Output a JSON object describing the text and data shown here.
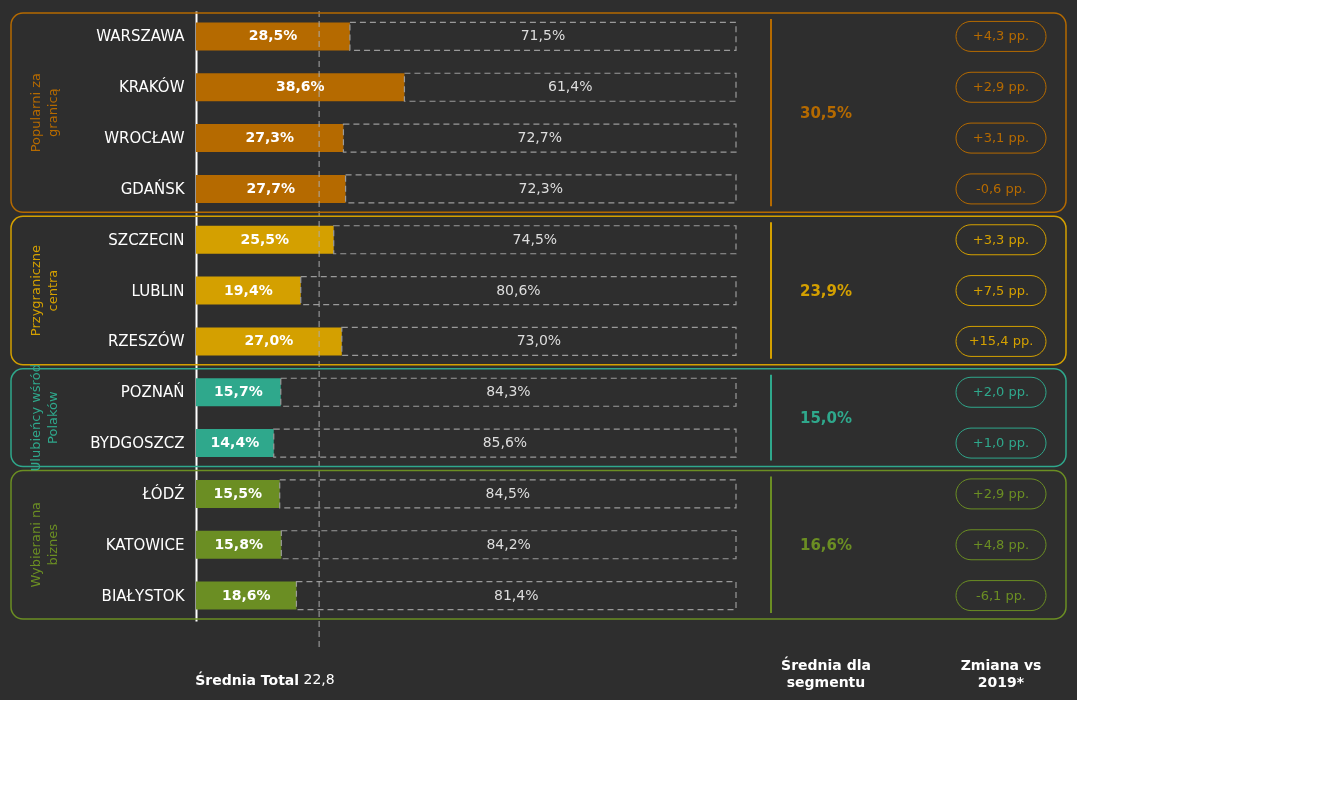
{
  "chart_data": {
    "type": "bar",
    "orientation": "horizontal",
    "stacked": true,
    "grid": false,
    "tick_labels": "y",
    "xlim": [
      0,
      100
    ],
    "categories": [
      "WARSZAWA",
      "KRAKÓW",
      "WROCŁAW",
      "GDAŃSK",
      "SZCZECIN",
      "LUBLIN",
      "RZESZÓW",
      "POZNAŃ",
      "BYDGOSZCZ",
      "ŁÓDŹ",
      "KATOWICE",
      "BIAŁYSTOK"
    ],
    "series": [
      {
        "colors": [
          "#b56a00",
          "#b56a00",
          "#b56a00",
          "#b56a00",
          "#d4a000",
          "#d4a000",
          "#d4a000",
          "#2fa88c",
          "#2fa88c",
          "#6b8e23",
          "#6b8e23",
          "#6b8e23"
        ],
        "values": [
          28.5,
          38.6,
          27.3,
          27.7,
          25.5,
          19.4,
          27.0,
          15.7,
          14.4,
          15.5,
          15.8,
          18.6
        ],
        "value_labels": [
          "28,5%",
          "38,6%",
          "27,3%",
          "27,7%",
          "25,5%",
          "19,4%",
          "27,0%",
          "15,7%",
          "14,4%",
          "15,5%",
          "15,8%",
          "18,6%"
        ]
      },
      {
        "color": "#9a9a9a",
        "line_style": "dashed",
        "values": [
          71.5,
          61.4,
          72.7,
          72.3,
          74.5,
          80.6,
          73.0,
          84.3,
          85.6,
          84.5,
          84.2,
          81.4
        ],
        "value_labels": [
          "71,5%",
          "61,4%",
          "72,7%",
          "72,3%",
          "74,5%",
          "80,6%",
          "73,0%",
          "84,3%",
          "85,6%",
          "84,5%",
          "84,2%",
          "81,4%"
        ]
      }
    ],
    "ref_lines": [
      {
        "axis": "x",
        "value": 22.8,
        "label": "22,8",
        "color": "#aaaaaa",
        "line_style": "dashed"
      }
    ],
    "annotations": [
      "Popularni za granicą",
      "Przygraniczne centra",
      "Ulubieńcy wśród Polaków",
      "Wybierani na biznes",
      "30,5%",
      "23,9%",
      "15,0%",
      "16,6%",
      "+4,3 pp.",
      "+2,9 pp.",
      "+3,1 pp.",
      "-0,6 pp.",
      "+3,3 pp.",
      "+7,5 pp.",
      "+15,4 pp.",
      "+2,0 pp.",
      "+1,0 pp.",
      "+2,9 pp.",
      "+4,8 pp.",
      "-6,1 pp.",
      "Średnia Total",
      "Średnia dla segmentu",
      "Zmiana vs 2019*"
    ]
  }
}
